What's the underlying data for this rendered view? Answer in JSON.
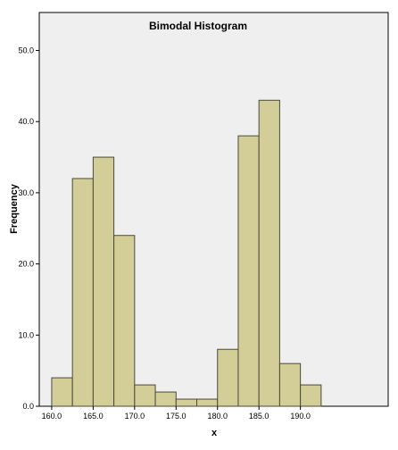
{
  "chart_data": {
    "type": "bar",
    "title": "Bimodal Histogram",
    "xlabel": "x",
    "ylabel": "Frequency",
    "xlim": [
      158.5,
      192.0
    ],
    "ylim": [
      0,
      55
    ],
    "x_ticks": [
      {
        "value": 160,
        "label": "160.0"
      },
      {
        "value": 165,
        "label": "165.0"
      },
      {
        "value": 170,
        "label": "170.0"
      },
      {
        "value": 175,
        "label": "175.0"
      },
      {
        "value": 180,
        "label": "180.0"
      },
      {
        "value": 185,
        "label": "185.0"
      },
      {
        "value": 190,
        "label": "190.0"
      }
    ],
    "y_ticks": [
      {
        "value": 0,
        "label": "0.0"
      },
      {
        "value": 10,
        "label": "10.0"
      },
      {
        "value": 20,
        "label": "20.0"
      },
      {
        "value": 30,
        "label": "30.0"
      },
      {
        "value": 40,
        "label": "40.0"
      },
      {
        "value": 50,
        "label": "50.0"
      }
    ],
    "bin_width": 2.5,
    "bins": [
      {
        "start": 160.0,
        "count": 4
      },
      {
        "start": 162.5,
        "count": 32
      },
      {
        "start": 165.0,
        "count": 35
      },
      {
        "start": 167.5,
        "count": 24
      },
      {
        "start": 170.0,
        "count": 3
      },
      {
        "start": 172.5,
        "count": 2
      },
      {
        "start": 175.0,
        "count": 1
      },
      {
        "start": 177.5,
        "count": 1
      },
      {
        "start": 180.0,
        "count": 8
      },
      {
        "start": 182.5,
        "count": 38
      },
      {
        "start": 185.0,
        "count": 43
      },
      {
        "start": 187.5,
        "count": 6
      },
      {
        "start": 190.0,
        "count": 3
      }
    ],
    "grid": false,
    "legend": "none",
    "colors": {
      "plot_background": "#efefef",
      "bar_fill": "#d3ce98",
      "bar_edge": "#4a4a3a",
      "axis": "#000000"
    }
  }
}
